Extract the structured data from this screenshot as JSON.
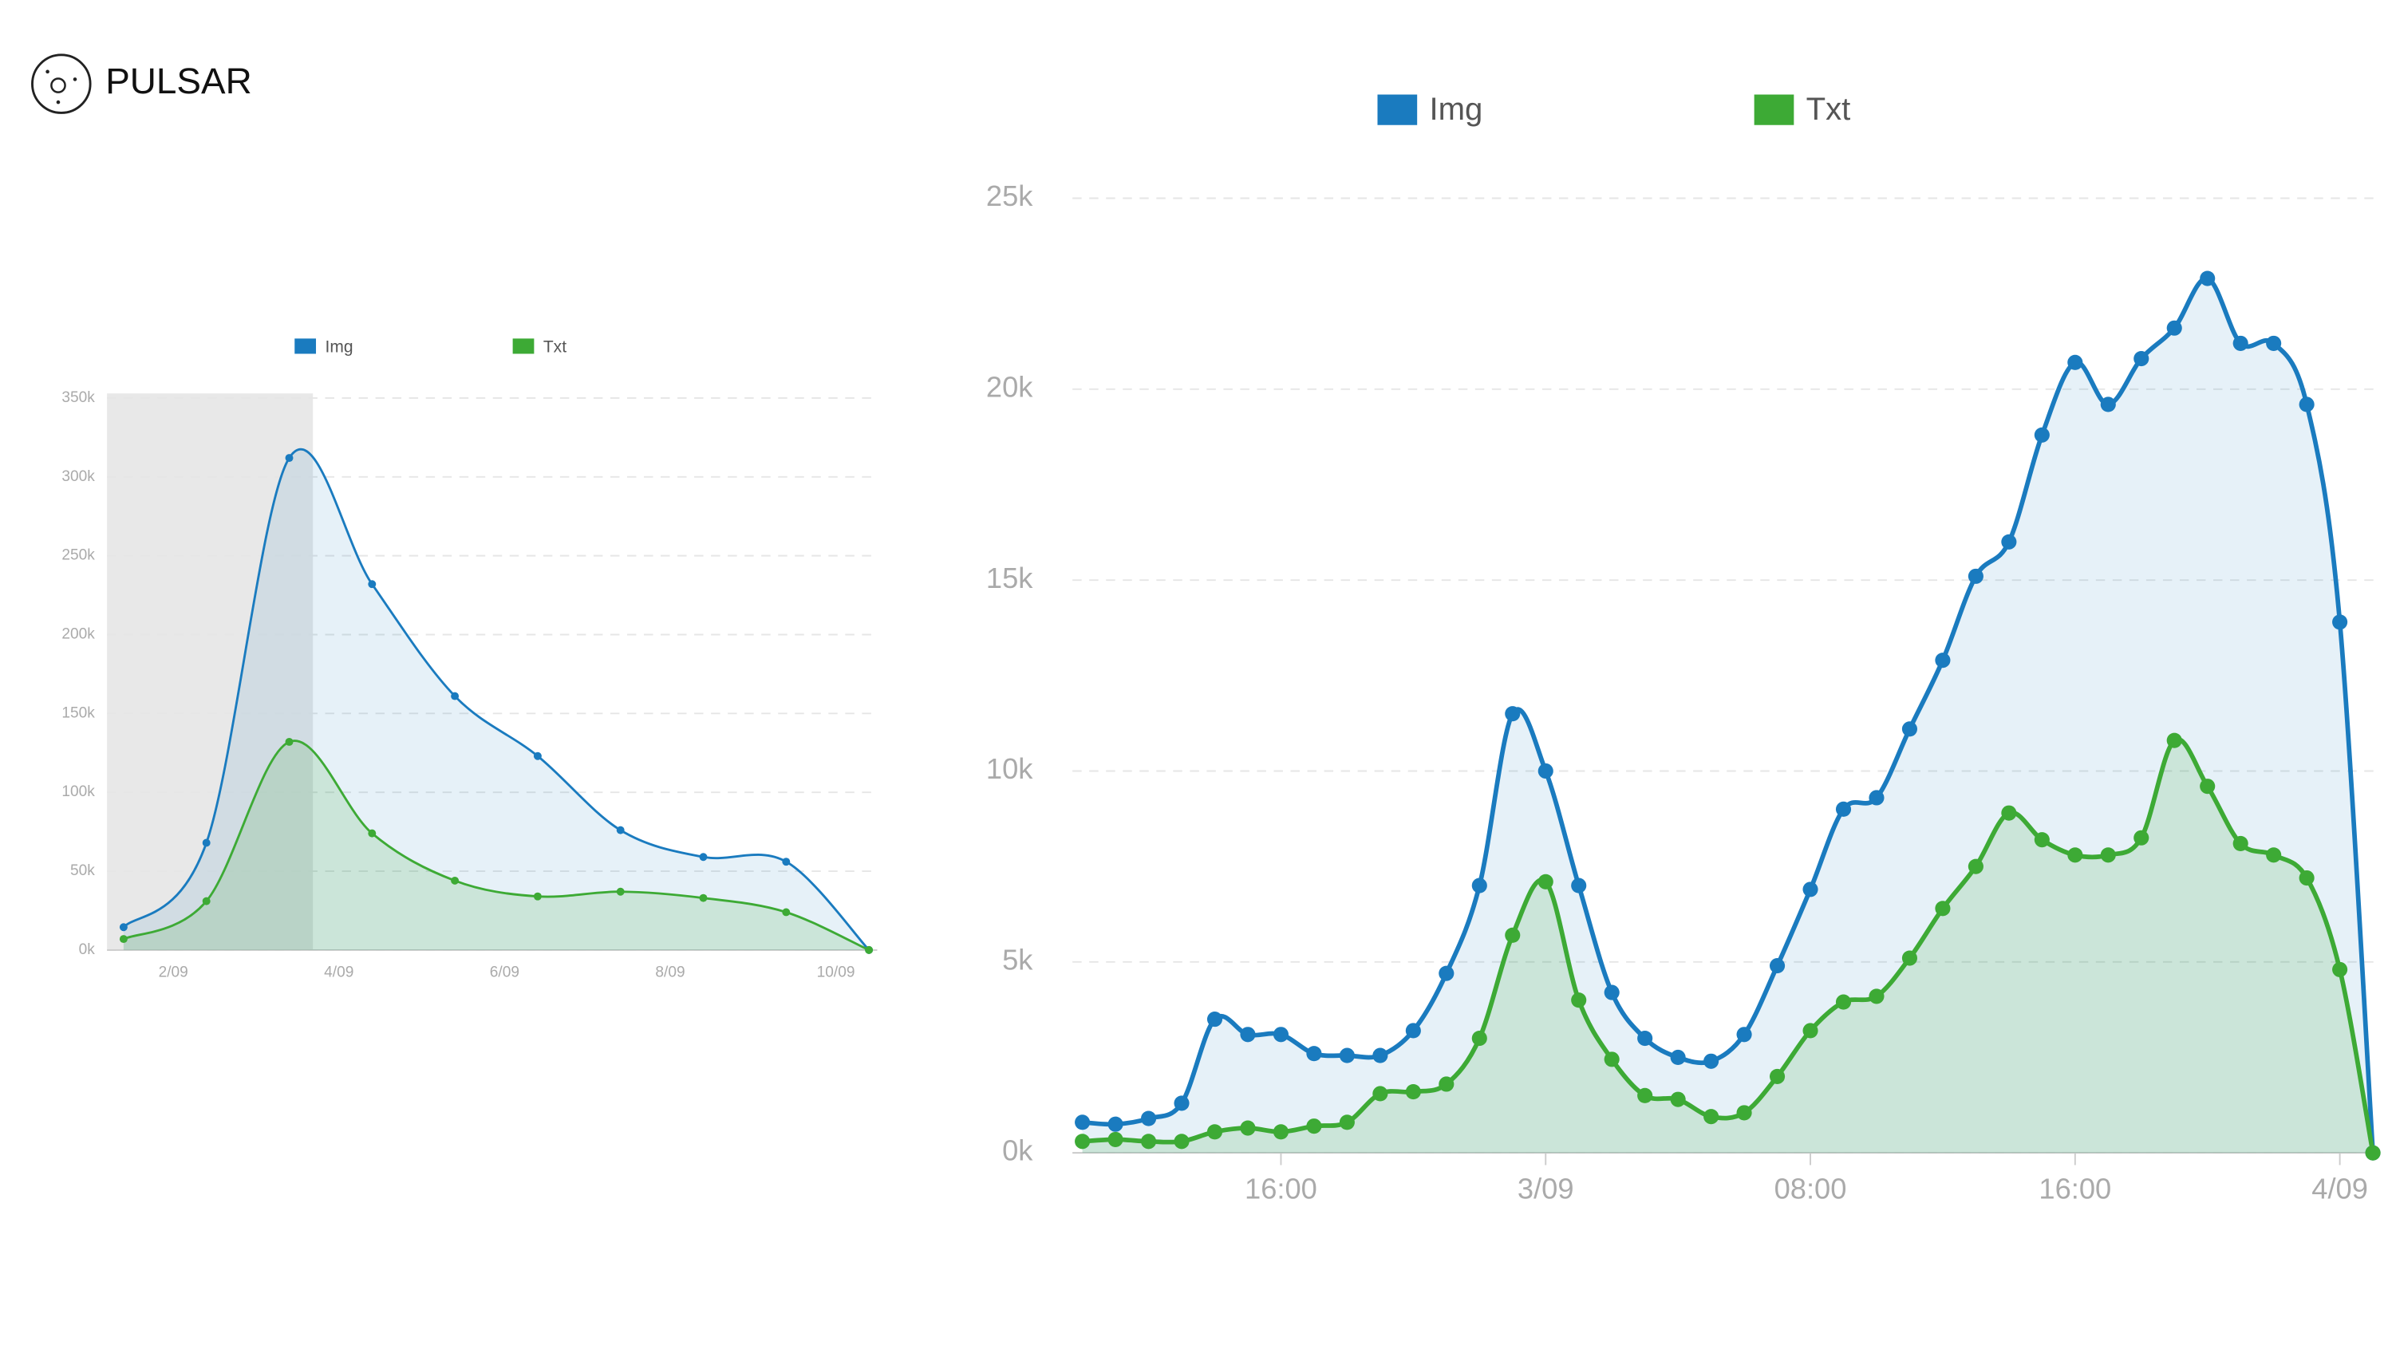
{
  "logo": "PULSAR",
  "chart_data": [
    {
      "type": "line",
      "area": true,
      "x": [
        1.4,
        2.4,
        3.4,
        4.4,
        5.4,
        6.4,
        7.4,
        8.4,
        9.4,
        10.4
      ],
      "series": [
        {
          "name": "Img",
          "color": "#1a7bbf",
          "values": [
            14.5,
            68,
            312,
            232,
            161,
            123,
            76,
            59,
            56,
            0
          ]
        },
        {
          "name": "Txt",
          "color": "#3daa35",
          "values": [
            7,
            31,
            132,
            74,
            44,
            34,
            37,
            33,
            24,
            0
          ]
        }
      ],
      "xlim": [
        1.2,
        10.5
      ],
      "xticks": [
        {
          "value": 2,
          "label": "2/09"
        },
        {
          "value": 4,
          "label": "4/09"
        },
        {
          "value": 6,
          "label": "6/09"
        },
        {
          "value": 8,
          "label": "8/09"
        },
        {
          "value": 10,
          "label": "10/09"
        }
      ],
      "ylim": [
        0,
        350
      ],
      "yticks": [
        {
          "value": 0,
          "label": "0k"
        },
        {
          "value": 50,
          "label": "50k"
        },
        {
          "value": 100,
          "label": "100k"
        },
        {
          "value": 150,
          "label": "150k"
        },
        {
          "value": 200,
          "label": "200k"
        },
        {
          "value": 250,
          "label": "250k"
        },
        {
          "value": 300,
          "label": "300k"
        },
        {
          "value": 350,
          "label": "350k"
        }
      ],
      "grid": true,
      "legend": "top"
    },
    {
      "type": "line",
      "area": true,
      "x": [
        10,
        11,
        12,
        13,
        14,
        15,
        16,
        17,
        18,
        19,
        20,
        21,
        22,
        23,
        24,
        25,
        26,
        27,
        28,
        29,
        30,
        31,
        32,
        33,
        34,
        35,
        36,
        37,
        38,
        39,
        40,
        41,
        42,
        43,
        44,
        45,
        46,
        47,
        48,
        49
      ],
      "series": [
        {
          "name": "Img",
          "color": "#1a7bbf",
          "values": [
            0.8,
            0.75,
            0.9,
            1.3,
            3.5,
            3.1,
            3.1,
            2.6,
            2.55,
            2.55,
            3.2,
            4.7,
            7.0,
            11.5,
            10.0,
            7.0,
            4.2,
            3.0,
            2.5,
            2.4,
            3.1,
            4.9,
            6.9,
            9.0,
            9.3,
            11.1,
            12.9,
            15.1,
            16.0,
            18.8,
            20.7,
            19.6,
            20.8,
            21.6,
            22.9,
            21.2,
            21.2,
            19.6,
            13.9,
            0
          ]
        },
        {
          "name": "Txt",
          "color": "#3daa35",
          "values": [
            0.3,
            0.35,
            0.3,
            0.3,
            0.55,
            0.65,
            0.55,
            0.7,
            0.8,
            1.55,
            1.6,
            1.8,
            3.0,
            5.7,
            7.1,
            4.0,
            2.45,
            1.5,
            1.4,
            0.95,
            1.05,
            2.0,
            3.2,
            3.95,
            4.1,
            5.1,
            6.4,
            7.5,
            8.9,
            8.2,
            7.8,
            7.8,
            8.25,
            10.8,
            9.6,
            8.1,
            7.8,
            7.2,
            4.8,
            0
          ]
        }
      ],
      "xlim": [
        9.7,
        49.2
      ],
      "xticks": [
        {
          "value": 16,
          "label": "16:00"
        },
        {
          "value": 24,
          "label": "3/09"
        },
        {
          "value": 32,
          "label": "08:00"
        },
        {
          "value": 40,
          "label": "16:00"
        },
        {
          "value": 48,
          "label": "4/09"
        }
      ],
      "ylim": [
        0,
        25
      ],
      "yticks": [
        {
          "value": 0,
          "label": "0k"
        },
        {
          "value": 5,
          "label": "5k"
        },
        {
          "value": 10,
          "label": "10k"
        },
        {
          "value": 15,
          "label": "15k"
        },
        {
          "value": 20,
          "label": "20k"
        },
        {
          "value": 25,
          "label": "25k"
        }
      ],
      "grid": true,
      "legend": "top"
    }
  ]
}
